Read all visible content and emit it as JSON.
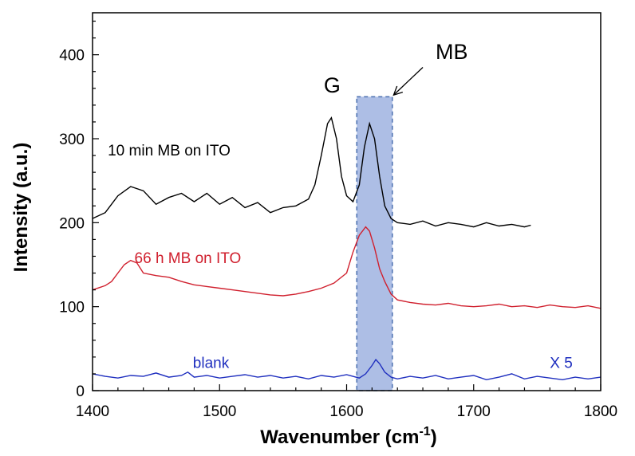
{
  "chart_data": {
    "type": "line",
    "xlabel": "Wavenumber (cm",
    "xlabel_sup": "-1",
    "xlabel_close": ")",
    "ylabel": "Intensity (a.u.)",
    "xlim": [
      1400,
      1800
    ],
    "ylim": [
      0,
      450
    ],
    "x_ticks": [
      1400,
      1500,
      1600,
      1700,
      1800
    ],
    "y_ticks": [
      0,
      100,
      200,
      300,
      400
    ],
    "grid": false,
    "series": [
      {
        "name": "10 min MB on ITO",
        "color": "#000000",
        "x": [
          1400,
          1410,
          1420,
          1430,
          1440,
          1450,
          1460,
          1470,
          1480,
          1490,
          1500,
          1510,
          1520,
          1530,
          1540,
          1550,
          1560,
          1570,
          1575,
          1580,
          1585,
          1588,
          1592,
          1596,
          1600,
          1605,
          1610,
          1614,
          1618,
          1622,
          1626,
          1630,
          1635,
          1640,
          1650,
          1660,
          1670,
          1680,
          1690,
          1700,
          1710,
          1720,
          1730,
          1740,
          1745
        ],
        "y": [
          205,
          212,
          232,
          243,
          238,
          222,
          230,
          235,
          225,
          235,
          222,
          230,
          218,
          224,
          212,
          218,
          220,
          228,
          245,
          280,
          318,
          325,
          300,
          255,
          232,
          225,
          245,
          290,
          318,
          300,
          255,
          220,
          205,
          200,
          198,
          202,
          196,
          200,
          198,
          195,
          200,
          196,
          198,
          195,
          197
        ]
      },
      {
        "name": "66 h MB on ITO",
        "color": "#d0202e",
        "x": [
          1400,
          1410,
          1415,
          1420,
          1425,
          1430,
          1435,
          1440,
          1450,
          1460,
          1470,
          1480,
          1490,
          1500,
          1510,
          1520,
          1530,
          1540,
          1550,
          1560,
          1570,
          1580,
          1590,
          1600,
          1605,
          1610,
          1615,
          1618,
          1622,
          1626,
          1630,
          1635,
          1640,
          1650,
          1660,
          1670,
          1680,
          1690,
          1700,
          1710,
          1720,
          1730,
          1740,
          1750,
          1760,
          1770,
          1780,
          1790,
          1800
        ],
        "y": [
          120,
          125,
          130,
          140,
          150,
          155,
          152,
          140,
          137,
          135,
          130,
          126,
          124,
          122,
          120,
          118,
          116,
          114,
          113,
          115,
          118,
          122,
          128,
          140,
          165,
          185,
          195,
          190,
          170,
          145,
          130,
          115,
          108,
          105,
          103,
          102,
          104,
          101,
          100,
          101,
          103,
          100,
          101,
          99,
          102,
          100,
          99,
          101,
          98
        ]
      },
      {
        "name": "blank",
        "color": "#1f2fbf",
        "x": [
          1400,
          1410,
          1420,
          1430,
          1440,
          1450,
          1460,
          1470,
          1475,
          1480,
          1490,
          1500,
          1510,
          1520,
          1530,
          1540,
          1550,
          1560,
          1570,
          1580,
          1590,
          1600,
          1610,
          1615,
          1620,
          1623,
          1626,
          1630,
          1635,
          1640,
          1650,
          1660,
          1670,
          1680,
          1690,
          1700,
          1710,
          1720,
          1730,
          1740,
          1750,
          1760,
          1770,
          1780,
          1790,
          1800
        ],
        "y": [
          20,
          17,
          15,
          18,
          17,
          21,
          16,
          18,
          22,
          16,
          18,
          15,
          17,
          19,
          16,
          18,
          15,
          17,
          14,
          18,
          16,
          19,
          15,
          20,
          30,
          37,
          32,
          22,
          16,
          14,
          17,
          15,
          18,
          14,
          16,
          18,
          13,
          16,
          20,
          14,
          17,
          15,
          13,
          16,
          14,
          16
        ]
      }
    ],
    "highlight_band": {
      "x_from": 1608,
      "x_to": 1636,
      "y_from": 0,
      "y_to": 350,
      "color": "#9fb3e0"
    },
    "annotations": [
      {
        "id": "label-10min",
        "text": "10 min MB on ITO",
        "x": 1412,
        "y": 280,
        "color": "#000000"
      },
      {
        "id": "label-66h",
        "text": "66 h MB on ITO",
        "x": 1433,
        "y": 152,
        "color": "#d0202e"
      },
      {
        "id": "label-blank",
        "text": "blank",
        "x": 1479,
        "y": 27,
        "color": "#1f2fbf"
      },
      {
        "id": "label-x5",
        "text": "X 5",
        "x": 1760,
        "y": 27,
        "color": "#1f2fbf"
      },
      {
        "id": "label-g",
        "text": "G",
        "x": 1582,
        "y": 355,
        "color": "#000000"
      },
      {
        "id": "label-mb",
        "text": "MB",
        "x": 1670,
        "y": 395,
        "color": "#000000"
      }
    ]
  }
}
